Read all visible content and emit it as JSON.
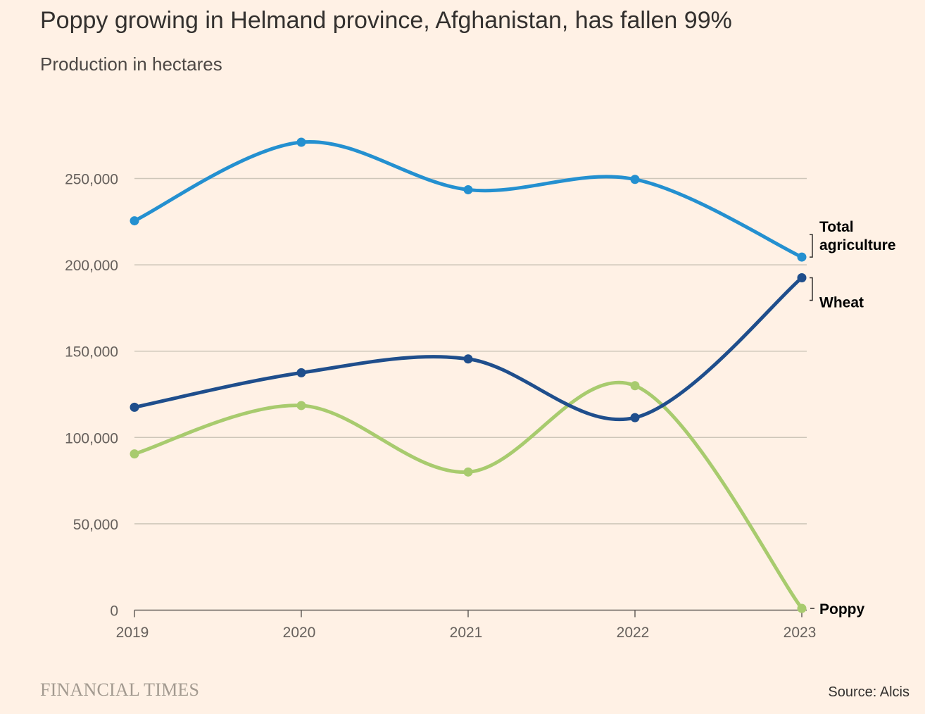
{
  "title": "Poppy growing in Helmand province, Afghanistan, has fallen 99%",
  "subtitle": "Production in hectares",
  "brand": "FINANCIAL TIMES",
  "source": "Source: Alcis",
  "chart_data": {
    "type": "line",
    "title": "Poppy growing in Helmand province, Afghanistan, has fallen 99%",
    "subtitle": "Production in hectares",
    "xlabel": "",
    "ylabel": "",
    "x": [
      "2019",
      "2020",
      "2021",
      "2022",
      "2023"
    ],
    "ylim": [
      0,
      250000
    ],
    "yticks": [
      0,
      50000,
      100000,
      150000,
      200000,
      250000
    ],
    "ytick_labels": [
      "0",
      "50,000",
      "100,000",
      "150,000",
      "200,000",
      "250,000"
    ],
    "grid": true,
    "series": [
      {
        "name": "Total agriculture",
        "label_lines": [
          "Total",
          "agriculture"
        ],
        "color": "#2490D0",
        "values": [
          225500,
          271000,
          243500,
          249500,
          204500
        ]
      },
      {
        "name": "Wheat",
        "label_lines": [
          "Wheat"
        ],
        "color": "#1F4E8C",
        "values": [
          117500,
          137500,
          145500,
          111500,
          192500
        ]
      },
      {
        "name": "Poppy",
        "label_lines": [
          "Poppy"
        ],
        "color": "#A8CB6E",
        "values": [
          90500,
          118500,
          80000,
          130000,
          1000
        ]
      }
    ]
  }
}
